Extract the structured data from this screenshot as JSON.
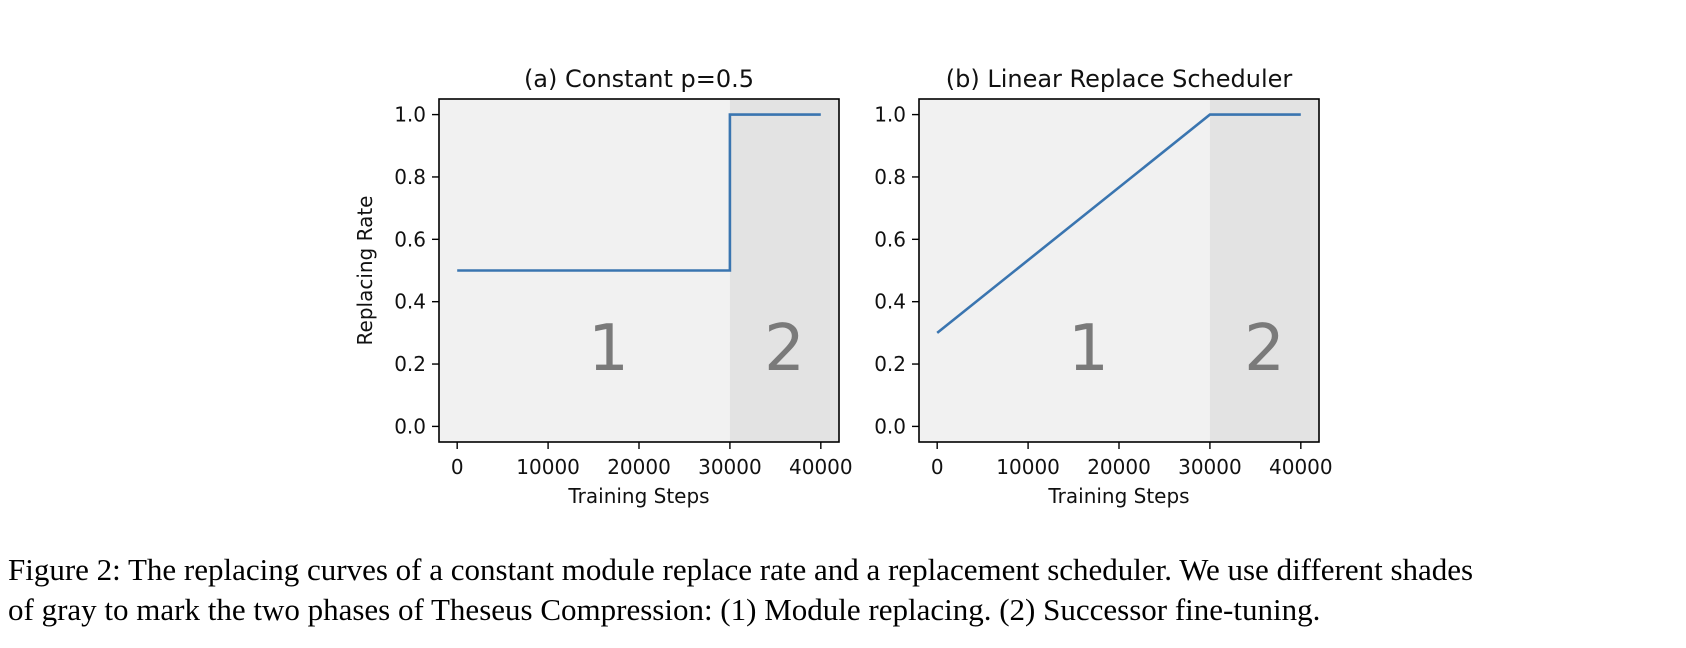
{
  "chart_data": [
    {
      "type": "line",
      "title": "(a) Constant p=0.5",
      "xlabel": "Training Steps",
      "ylabel": "Replacing Rate",
      "xlim": [
        -2000,
        42000
      ],
      "ylim": [
        -0.05,
        1.05
      ],
      "xticks": [
        0,
        10000,
        20000,
        30000,
        40000
      ],
      "yticks": [
        0.0,
        0.2,
        0.4,
        0.6,
        0.8,
        1.0
      ],
      "xtick_labels": [
        "0",
        "10000",
        "20000",
        "30000",
        "40000"
      ],
      "ytick_labels": [
        "0.0",
        "0.2",
        "0.4",
        "0.6",
        "0.8",
        "1.0"
      ],
      "series": [
        {
          "x": [
            0,
            30000,
            30000,
            40000
          ],
          "y": [
            0.5,
            0.5,
            1.0,
            1.0
          ]
        }
      ],
      "phases": [
        {
          "label": "1",
          "x_start": -2000,
          "x_end": 30000,
          "color": "#f1f1f1"
        },
        {
          "label": "2",
          "x_start": 30000,
          "x_end": 42000,
          "color": "#e3e3e3"
        }
      ],
      "line_color": "#3a75b0"
    },
    {
      "type": "line",
      "title": "(b) Linear Replace Scheduler",
      "xlabel": "Training Steps",
      "ylabel": "",
      "xlim": [
        -2000,
        42000
      ],
      "ylim": [
        -0.05,
        1.05
      ],
      "xticks": [
        0,
        10000,
        20000,
        30000,
        40000
      ],
      "yticks": [
        0.0,
        0.2,
        0.4,
        0.6,
        0.8,
        1.0
      ],
      "xtick_labels": [
        "0",
        "10000",
        "20000",
        "30000",
        "40000"
      ],
      "ytick_labels": [
        "0.0",
        "0.2",
        "0.4",
        "0.6",
        "0.8",
        "1.0"
      ],
      "series": [
        {
          "x": [
            0,
            30000,
            40000
          ],
          "y": [
            0.3,
            1.0,
            1.0
          ]
        }
      ],
      "phases": [
        {
          "label": "1",
          "x_start": -2000,
          "x_end": 30000,
          "color": "#f1f1f1"
        },
        {
          "label": "2",
          "x_start": 30000,
          "x_end": 42000,
          "color": "#e3e3e3"
        }
      ],
      "line_color": "#3a75b0"
    }
  ],
  "caption": {
    "line1": "Figure 2: The replacing curves of a constant module replace rate and a replacement scheduler. We use different shades",
    "line2": "of gray to mark the two phases of Theseus Compression: (1) Module replacing. (2) Successor fine-tuning."
  }
}
